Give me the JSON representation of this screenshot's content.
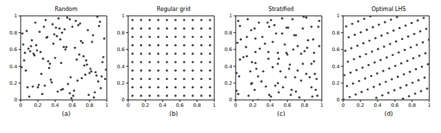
{
  "chart_data": [
    {
      "type": "scatter",
      "title": "Random",
      "xlabel": "(a)",
      "color": "#333333",
      "marker": "circle",
      "xlim": [
        0,
        1
      ],
      "ylim": [
        0,
        1
      ],
      "xticks": [
        0,
        0.2,
        0.4,
        0.6,
        0.8,
        1
      ],
      "yticks": [
        0,
        0.2,
        0.4,
        0.6,
        0.8,
        1
      ],
      "x": [
        0.82,
        0.13,
        0.47,
        0.91,
        0.05,
        0.66,
        0.29,
        0.74,
        0.38,
        0.57,
        0.02,
        0.95,
        0.21,
        0.63,
        0.44,
        0.88,
        0.16,
        0.51,
        0.79,
        0.33,
        0.69,
        0.08,
        0.97,
        0.26,
        0.58,
        0.41,
        0.85,
        0.12,
        0.73,
        0.36,
        0.54,
        0.99,
        0.19,
        0.62,
        0.07,
        0.47,
        0.83,
        0.28,
        0.92,
        0.15,
        0.71,
        0.39,
        0.04,
        0.86,
        0.53,
        0.24,
        0.67,
        0.93,
        0.31,
        0.77,
        0.11,
        0.59,
        0.45,
        0.81,
        0.03,
        0.64,
        0.35,
        0.96,
        0.22,
        0.49,
        0.76,
        0.17,
        0.87,
        0.42,
        0.61,
        0.09,
        0.94,
        0.27,
        0.55,
        0.72,
        0.34,
        0.89,
        0.14,
        0.68,
        0.46,
        0.01,
        0.78,
        0.25,
        0.52,
        0.98,
        0.37,
        0.65,
        0.06,
        0.84,
        0.43,
        0.18,
        0.75,
        0.57,
        0.23,
        0.9,
        0.48,
        0.1,
        0.7,
        0.32,
        0.8,
        0.6,
        0.2,
        0.5,
        0.4,
        0.3
      ],
      "y": [
        0.34,
        0.71,
        0.12,
        0.88,
        0.56,
        0.23,
        0.95,
        0.41,
        0.67,
        0.08,
        0.79,
        0.45,
        0.18,
        0.62,
        0.97,
        0.29,
        0.53,
        0.84,
        0.06,
        0.38,
        0.91,
        0.15,
        0.73,
        0.49,
        0.27,
        0.86,
        0.03,
        0.64,
        0.52,
        0.21,
        0.98,
        0.36,
        0.59,
        0.11,
        0.82,
        0.44,
        0.69,
        0.17,
        0.93,
        0.55,
        0.26,
        0.78,
        0.47,
        0.09,
        0.63,
        0.31,
        0.89,
        0.14,
        0.75,
        0.42,
        0.58,
        0.02,
        0.85,
        0.37,
        0.66,
        0.94,
        0.24,
        0.51,
        0.81,
        0.13,
        0.47,
        0.92,
        0.33,
        0.76,
        0.05,
        0.61,
        0.28,
        0.87,
        0.19,
        0.68,
        0.43,
        0.99,
        0.16,
        0.54,
        0.72,
        0.39,
        0.83,
        0.07,
        0.6,
        0.25,
        0.9,
        0.48,
        0.35,
        0.77,
        0.1,
        0.65,
        0.3,
        0.96,
        0.57,
        0.22,
        0.8,
        0.04,
        0.7,
        0.46,
        0.32,
        0.87,
        0.15,
        0.63,
        0.5,
        0.74
      ]
    },
    {
      "type": "scatter",
      "title": "Regular grid",
      "xlabel": "(b)",
      "color": "#333333",
      "marker": "circle",
      "xlim": [
        0,
        1
      ],
      "ylim": [
        0,
        1
      ],
      "xticks": [
        0,
        0.2,
        0.4,
        0.6,
        0.8,
        1
      ],
      "yticks": [
        0,
        0.2,
        0.4,
        0.6,
        0.8,
        1
      ],
      "x": [
        0.05,
        0.05,
        0.05,
        0.05,
        0.05,
        0.05,
        0.05,
        0.05,
        0.05,
        0.05,
        0.15,
        0.15,
        0.15,
        0.15,
        0.15,
        0.15,
        0.15,
        0.15,
        0.15,
        0.15,
        0.25,
        0.25,
        0.25,
        0.25,
        0.25,
        0.25,
        0.25,
        0.25,
        0.25,
        0.25,
        0.35,
        0.35,
        0.35,
        0.35,
        0.35,
        0.35,
        0.35,
        0.35,
        0.35,
        0.35,
        0.45,
        0.45,
        0.45,
        0.45,
        0.45,
        0.45,
        0.45,
        0.45,
        0.45,
        0.45,
        0.55,
        0.55,
        0.55,
        0.55,
        0.55,
        0.55,
        0.55,
        0.55,
        0.55,
        0.55,
        0.65,
        0.65,
        0.65,
        0.65,
        0.65,
        0.65,
        0.65,
        0.65,
        0.65,
        0.65,
        0.75,
        0.75,
        0.75,
        0.75,
        0.75,
        0.75,
        0.75,
        0.75,
        0.75,
        0.75,
        0.85,
        0.85,
        0.85,
        0.85,
        0.85,
        0.85,
        0.85,
        0.85,
        0.85,
        0.85,
        0.95,
        0.95,
        0.95,
        0.95,
        0.95,
        0.95,
        0.95,
        0.95,
        0.95,
        0.95
      ],
      "y": [
        0.05,
        0.15,
        0.25,
        0.35,
        0.45,
        0.55,
        0.65,
        0.75,
        0.85,
        0.95,
        0.05,
        0.15,
        0.25,
        0.35,
        0.45,
        0.55,
        0.65,
        0.75,
        0.85,
        0.95,
        0.05,
        0.15,
        0.25,
        0.35,
        0.45,
        0.55,
        0.65,
        0.75,
        0.85,
        0.95,
        0.05,
        0.15,
        0.25,
        0.35,
        0.45,
        0.55,
        0.65,
        0.75,
        0.85,
        0.95,
        0.05,
        0.15,
        0.25,
        0.35,
        0.45,
        0.55,
        0.65,
        0.75,
        0.85,
        0.95,
        0.05,
        0.15,
        0.25,
        0.35,
        0.45,
        0.55,
        0.65,
        0.75,
        0.85,
        0.95,
        0.05,
        0.15,
        0.25,
        0.35,
        0.45,
        0.55,
        0.65,
        0.75,
        0.85,
        0.95,
        0.05,
        0.15,
        0.25,
        0.35,
        0.45,
        0.55,
        0.65,
        0.75,
        0.85,
        0.95,
        0.05,
        0.15,
        0.25,
        0.35,
        0.45,
        0.55,
        0.65,
        0.75,
        0.85,
        0.95,
        0.05,
        0.15,
        0.25,
        0.35,
        0.45,
        0.55,
        0.65,
        0.75,
        0.85,
        0.95
      ]
    },
    {
      "type": "scatter",
      "title": "Stratified",
      "xlabel": "(c)",
      "color": "#333333",
      "marker": "circle",
      "xlim": [
        0,
        1
      ],
      "ylim": [
        0,
        1
      ],
      "xticks": [
        0,
        0.2,
        0.4,
        0.6,
        0.8,
        1
      ],
      "yticks": [
        0,
        0.2,
        0.4,
        0.6,
        0.8,
        1
      ],
      "x": [
        0.03,
        0.01,
        0.04,
        0.01,
        0.05,
        0.09,
        0.02,
        0.06,
        0.05,
        0.03,
        0.15,
        0.18,
        0.19,
        0.17,
        0.19,
        0.13,
        0.12,
        0.13,
        0.18,
        0.14,
        0.26,
        0.22,
        0.26,
        0.24,
        0.23,
        0.23,
        0.28,
        0.23,
        0.22,
        0.27,
        0.39,
        0.35,
        0.3,
        0.32,
        0.38,
        0.38,
        0.34,
        0.31,
        0.39,
        0.37,
        0.41,
        0.46,
        0.49,
        0.43,
        0.49,
        0.49,
        0.43,
        0.47,
        0.45,
        0.41,
        0.5,
        0.55,
        0.58,
        0.52,
        0.5,
        0.59,
        0.57,
        0.54,
        0.59,
        0.54,
        0.64,
        0.65,
        0.69,
        0.62,
        0.63,
        0.6,
        0.67,
        0.68,
        0.61,
        0.66,
        0.74,
        0.7,
        0.76,
        0.72,
        0.78,
        0.76,
        0.72,
        0.7,
        0.78,
        0.79,
        0.89,
        0.88,
        0.86,
        0.82,
        0.88,
        0.8,
        0.83,
        0.84,
        0.88,
        0.82,
        0.95,
        0.93,
        0.94,
        0.92,
        0.91,
        0.91,
        0.97,
        0.9,
        0.96,
        0.97
      ],
      "y": [
        0.07,
        0.11,
        0.28,
        0.32,
        0.48,
        0.51,
        0.68,
        0.72,
        0.88,
        0.94,
        0.05,
        0.19,
        0.2,
        0.34,
        0.45,
        0.52,
        0.63,
        0.75,
        0.83,
        0.96,
        0.0,
        0.12,
        0.28,
        0.37,
        0.44,
        0.57,
        0.61,
        0.73,
        0.85,
        0.92,
        0.06,
        0.16,
        0.22,
        0.34,
        0.49,
        0.57,
        0.67,
        0.75,
        0.87,
        0.92,
        0.04,
        0.17,
        0.2,
        0.39,
        0.43,
        0.56,
        0.69,
        0.79,
        0.89,
        0.95,
        0.09,
        0.15,
        0.27,
        0.34,
        0.49,
        0.56,
        0.66,
        0.79,
        0.86,
        0.97,
        0.06,
        0.12,
        0.27,
        0.37,
        0.42,
        0.54,
        0.6,
        0.77,
        0.86,
        0.96,
        0.03,
        0.1,
        0.23,
        0.35,
        0.43,
        0.55,
        0.64,
        0.77,
        0.85,
        0.99,
        0.04,
        0.15,
        0.27,
        0.31,
        0.43,
        0.58,
        0.62,
        0.71,
        0.87,
        0.98,
        0.05,
        0.12,
        0.25,
        0.31,
        0.46,
        0.56,
        0.64,
        0.72,
        0.87,
        0.94
      ]
    },
    {
      "type": "scatter",
      "title": "Optimal LHS",
      "xlabel": "(d)",
      "color": "#333333",
      "marker": "circle",
      "xlim": [
        0,
        1
      ],
      "ylim": [
        0,
        1
      ],
      "xticks": [
        0,
        0.2,
        0.4,
        0.6,
        0.8,
        1
      ],
      "yticks": [
        0,
        0.2,
        0.4,
        0.6,
        0.8,
        1
      ],
      "x": [
        0.005,
        0.015,
        0.025,
        0.035,
        0.045,
        0.055,
        0.065,
        0.075,
        0.085,
        0.095,
        0.105,
        0.115,
        0.125,
        0.135,
        0.145,
        0.155,
        0.165,
        0.175,
        0.185,
        0.195,
        0.205,
        0.215,
        0.225,
        0.235,
        0.245,
        0.255,
        0.265,
        0.275,
        0.285,
        0.295,
        0.305,
        0.315,
        0.325,
        0.335,
        0.345,
        0.355,
        0.365,
        0.375,
        0.385,
        0.395,
        0.405,
        0.415,
        0.425,
        0.435,
        0.445,
        0.455,
        0.465,
        0.475,
        0.485,
        0.495,
        0.505,
        0.515,
        0.525,
        0.535,
        0.545,
        0.555,
        0.565,
        0.575,
        0.585,
        0.595,
        0.605,
        0.615,
        0.625,
        0.635,
        0.645,
        0.655,
        0.665,
        0.675,
        0.685,
        0.695,
        0.705,
        0.715,
        0.725,
        0.735,
        0.745,
        0.755,
        0.765,
        0.775,
        0.785,
        0.795,
        0.805,
        0.815,
        0.825,
        0.835,
        0.845,
        0.855,
        0.865,
        0.875,
        0.885,
        0.895,
        0.905,
        0.915,
        0.925,
        0.935,
        0.945,
        0.955,
        0.965,
        0.975,
        0.985,
        0.995
      ],
      "y": [
        0.005,
        0.295,
        0.585,
        0.875,
        0.165,
        0.455,
        0.745,
        0.035,
        0.325,
        0.615,
        0.905,
        0.195,
        0.485,
        0.775,
        0.065,
        0.355,
        0.645,
        0.935,
        0.225,
        0.515,
        0.805,
        0.095,
        0.385,
        0.675,
        0.965,
        0.255,
        0.545,
        0.835,
        0.125,
        0.415,
        0.705,
        0.995,
        0.285,
        0.575,
        0.865,
        0.155,
        0.445,
        0.735,
        0.025,
        0.315,
        0.605,
        0.895,
        0.185,
        0.475,
        0.765,
        0.055,
        0.345,
        0.635,
        0.925,
        0.215,
        0.505,
        0.795,
        0.085,
        0.375,
        0.665,
        0.955,
        0.245,
        0.535,
        0.825,
        0.115,
        0.405,
        0.695,
        0.985,
        0.275,
        0.565,
        0.855,
        0.145,
        0.435,
        0.725,
        0.015,
        0.305,
        0.595,
        0.885,
        0.175,
        0.465,
        0.755,
        0.045,
        0.335,
        0.625,
        0.915,
        0.205,
        0.495,
        0.785,
        0.075,
        0.365,
        0.655,
        0.945,
        0.235,
        0.525,
        0.815,
        0.105,
        0.395,
        0.685,
        0.975,
        0.265,
        0.555,
        0.845,
        0.135,
        0.425,
        0.715
      ]
    }
  ]
}
